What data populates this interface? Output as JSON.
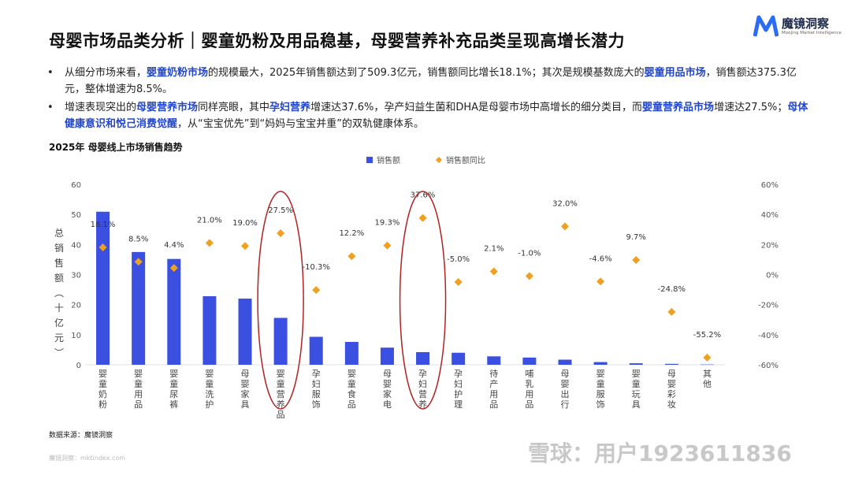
{
  "header": {
    "title": "母婴市场品类分析｜婴童奶粉及用品稳基，母婴营养补充品类呈现高增长潜力",
    "logo_cn": "魔镜洞察",
    "logo_en": "Moojing Market Intelligence"
  },
  "bullets": [
    {
      "parts": [
        {
          "t": "从细分市场来看，"
        },
        {
          "t": "婴童奶粉市场",
          "hl": true
        },
        {
          "t": "的规模最大，2025年销售额达到了509.3亿元，销售额同比增长18.1%；其次是规模基数庞大的"
        },
        {
          "t": "婴童用品市场",
          "hl": true
        },
        {
          "t": "，销售额达375.3亿元，整体增速为8.5%。"
        }
      ]
    },
    {
      "parts": [
        {
          "t": "增速表现突出的"
        },
        {
          "t": "母婴营养市场",
          "hl": true
        },
        {
          "t": "同样亮眼，其中"
        },
        {
          "t": "孕妇营养",
          "hl": true
        },
        {
          "t": "增速达37.6%，孕产妇益生菌和DHA是母婴市场中高增长的细分类目，而"
        },
        {
          "t": "婴童营养品市场",
          "hl": true
        },
        {
          "t": "增速达27.5%；"
        },
        {
          "t": "母体健康意识和悦己消费觉醒",
          "hl": true
        },
        {
          "t": "，从“宝宝优先”到“妈妈与宝宝并重”的双轨健康体系。"
        }
      ]
    }
  ],
  "bullet_marker": "•",
  "chart_data": {
    "type": "bar",
    "title": "2025年 母婴线上市场销售趋势",
    "ylabel": "总销售额（十亿元）",
    "ylim": [
      0,
      60
    ],
    "y2lim": [
      -60,
      60
    ],
    "yticks": [
      "0",
      "10",
      "20",
      "30",
      "40",
      "50",
      "60"
    ],
    "y2ticks": [
      "-60%",
      "-40%",
      "-20%",
      "0%",
      "20%",
      "40%",
      "60%"
    ],
    "legend": {
      "bar": "销售额",
      "point": "销售额同比",
      "position": "top-center"
    },
    "categories": [
      "婴童奶粉",
      "婴童用品",
      "婴童尿裤",
      "婴童洗护",
      "母婴家具",
      "婴童营养品",
      "孕妇服饰",
      "婴童食品",
      "母婴家电",
      "孕妇营养",
      "孕妇护理",
      "待产用品",
      "哺乳用品",
      "母婴出行",
      "婴童服饰",
      "婴童玩具",
      "母婴彩妆",
      "其他"
    ],
    "series": [
      {
        "name": "销售额",
        "type": "bar",
        "color": "#3b50e0",
        "values": [
          50.9,
          37.5,
          35.2,
          22.8,
          22.0,
          15.6,
          9.3,
          7.6,
          5.7,
          4.2,
          4.0,
          2.8,
          2.4,
          1.7,
          0.9,
          0.5,
          0.3,
          0.1
        ]
      },
      {
        "name": "销售额同比",
        "type": "scatter",
        "color": "#f0a020",
        "values": [
          18.1,
          8.5,
          4.4,
          21.0,
          19.0,
          27.5,
          -10.3,
          12.2,
          19.3,
          37.6,
          -5.0,
          2.1,
          -1.0,
          32.0,
          -4.6,
          9.7,
          -24.8,
          -55.2
        ],
        "labels": [
          "18.1%",
          "8.5%",
          "4.4%",
          "21.0%",
          "19.0%",
          "27.5%",
          "-10.3%",
          "12.2%",
          "19.3%",
          "37.6%",
          "-5.0%",
          "2.1%",
          "-1.0%",
          "32.0%",
          "-4.6%",
          "9.7%",
          "-24.8%",
          "-55.2%"
        ]
      }
    ],
    "highlight_categories": [
      "婴童营养品",
      "孕妇营养"
    ],
    "highlight_color": "#b22222"
  },
  "source": "数据来源：魔镜洞察",
  "footer": "魔镜洞察：mktindex.com",
  "watermark": "雪球：用户1923611836"
}
